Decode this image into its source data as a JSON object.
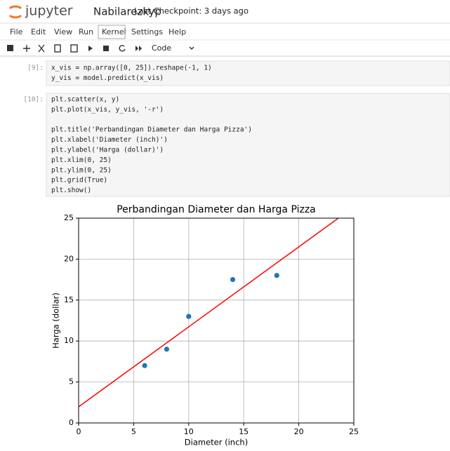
{
  "header": {
    "logo": "jupyter",
    "notebook_name": "Nabilarezkyp",
    "checkpoint": "Last Checkpoint: 3 days ago"
  },
  "menu": [
    "File",
    "Edit",
    "View",
    "Run",
    "Kernel",
    "Settings",
    "Help"
  ],
  "toolbar": {
    "cell_type": "Code"
  },
  "cells": [
    {
      "prompt": "[9]:",
      "blocks": [
        [
          "x_vis = np.array([0, 25]).reshape(-1, 1)",
          "y_vis = model.predict(x_vis)"
        ]
      ]
    },
    {
      "prompt": "[10]:",
      "blocks": [
        [
          "plt.scatter(x, y)",
          "plt.plot(x_vis, y_vis, '-r')"
        ],
        [
          "plt.title('Perbandingan Diameter dan Harga Pizza')",
          "plt.xlabel('Diameter (inch)')",
          "plt.ylabel('Harga (dollar)')",
          "plt.xlim(0, 25)",
          "plt.ylim(0, 25)",
          "plt.grid(True)",
          "plt.show()"
        ]
      ]
    }
  ],
  "chart_data": {
    "type": "scatter",
    "title": "Perbandingan Diameter dan Harga Pizza",
    "xlabel": "Diameter (inch)",
    "ylabel": "Harga (dollar)",
    "xlim": [
      0,
      25
    ],
    "ylim": [
      0,
      25
    ],
    "xticks": [
      0,
      5,
      10,
      15,
      20,
      25
    ],
    "yticks": [
      0,
      5,
      10,
      15,
      20,
      25
    ],
    "grid": true,
    "points": {
      "x": [
        6,
        8,
        10,
        14,
        18
      ],
      "y": [
        7,
        9,
        13,
        17.5,
        18
      ],
      "color": "#1f77b4"
    },
    "line": {
      "x": [
        0,
        25
      ],
      "y": [
        1.97,
        26.37
      ],
      "color": "#ff0000"
    }
  }
}
